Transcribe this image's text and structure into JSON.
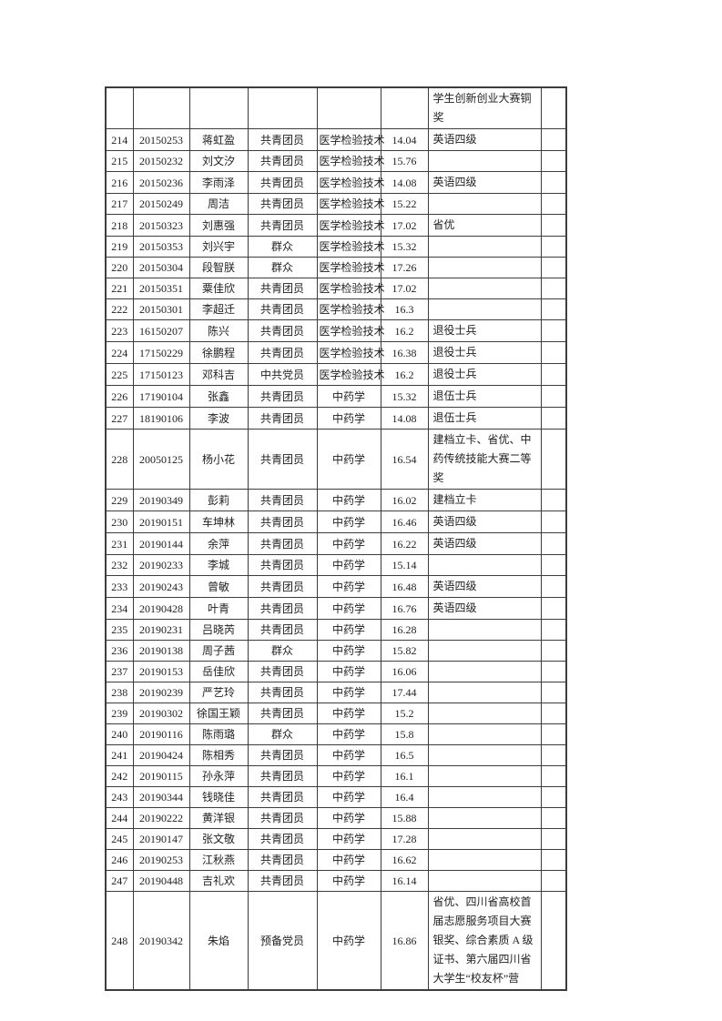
{
  "table": {
    "fields": [
      "index",
      "id",
      "name",
      "status",
      "major",
      "score",
      "awards",
      "blank"
    ],
    "rows": [
      {
        "index": "",
        "id": "",
        "name": "",
        "status": "",
        "major": "",
        "score": "",
        "awards": "学生创新创业大赛铜\n奖",
        "blank": ""
      },
      {
        "index": "214",
        "id": "20150253",
        "name": "蒋虹盈",
        "status": "共青团员",
        "major": "医学检验技术",
        "score": "14.04",
        "awards": "英语四级",
        "blank": ""
      },
      {
        "index": "215",
        "id": "20150232",
        "name": "刘文汐",
        "status": "共青团员",
        "major": "医学检验技术",
        "score": "15.76",
        "awards": "",
        "blank": ""
      },
      {
        "index": "216",
        "id": "20150236",
        "name": "李雨泽",
        "status": "共青团员",
        "major": "医学检验技术",
        "score": "14.08",
        "awards": "英语四级",
        "blank": ""
      },
      {
        "index": "217",
        "id": "20150249",
        "name": "周洁",
        "status": "共青团员",
        "major": "医学检验技术",
        "score": "15.22",
        "awards": "",
        "blank": ""
      },
      {
        "index": "218",
        "id": "20150323",
        "name": "刘惠强",
        "status": "共青团员",
        "major": "医学检验技术",
        "score": "17.02",
        "awards": "省优",
        "blank": ""
      },
      {
        "index": "219",
        "id": "20150353",
        "name": "刘兴宇",
        "status": "群众",
        "major": "医学检验技术",
        "score": "15.32",
        "awards": "",
        "blank": ""
      },
      {
        "index": "220",
        "id": "20150304",
        "name": "段智朕",
        "status": "群众",
        "major": "医学检验技术",
        "score": "17.26",
        "awards": "",
        "blank": ""
      },
      {
        "index": "221",
        "id": "20150351",
        "name": "粟佳欣",
        "status": "共青团员",
        "major": "医学检验技术",
        "score": "17.02",
        "awards": "",
        "blank": ""
      },
      {
        "index": "222",
        "id": "20150301",
        "name": "李超迁",
        "status": "共青团员",
        "major": "医学检验技术",
        "score": "16.3",
        "awards": "",
        "blank": ""
      },
      {
        "index": "223",
        "id": "16150207",
        "name": "陈兴",
        "status": "共青团员",
        "major": "医学检验技术",
        "score": "16.2",
        "awards": "退役士兵",
        "blank": ""
      },
      {
        "index": "224",
        "id": "17150229",
        "name": "徐鹏程",
        "status": "共青团员",
        "major": "医学检验技术",
        "score": "16.38",
        "awards": "退役士兵",
        "blank": ""
      },
      {
        "index": "225",
        "id": "17150123",
        "name": "邓科吉",
        "status": "中共党员",
        "major": "医学检验技术",
        "score": "16.2",
        "awards": "退役士兵",
        "blank": ""
      },
      {
        "index": "226",
        "id": "17190104",
        "name": "张鑫",
        "status": "共青团员",
        "major": "中药学",
        "score": "15.32",
        "awards": "退伍士兵",
        "blank": ""
      },
      {
        "index": "227",
        "id": "18190106",
        "name": "李波",
        "status": "共青团员",
        "major": "中药学",
        "score": "14.08",
        "awards": "退伍士兵",
        "blank": ""
      },
      {
        "index": "228",
        "id": "20050125",
        "name": "杨小花",
        "status": "共青团员",
        "major": "中药学",
        "score": "16.54",
        "awards": "建档立卡、省优、中\n药传统技能大赛二等\n奖",
        "blank": ""
      },
      {
        "index": "229",
        "id": "20190349",
        "name": "彭莉",
        "status": "共青团员",
        "major": "中药学",
        "score": "16.02",
        "awards": "建档立卡",
        "blank": ""
      },
      {
        "index": "230",
        "id": "20190151",
        "name": "车坤林",
        "status": "共青团员",
        "major": "中药学",
        "score": "16.46",
        "awards": "英语四级",
        "blank": ""
      },
      {
        "index": "231",
        "id": "20190144",
        "name": "余萍",
        "status": "共青团员",
        "major": "中药学",
        "score": "16.22",
        "awards": "英语四级",
        "blank": ""
      },
      {
        "index": "232",
        "id": "20190233",
        "name": "李城",
        "status": "共青团员",
        "major": "中药学",
        "score": "15.14",
        "awards": "",
        "blank": ""
      },
      {
        "index": "233",
        "id": "20190243",
        "name": "曾敏",
        "status": "共青团员",
        "major": "中药学",
        "score": "16.48",
        "awards": "英语四级",
        "blank": ""
      },
      {
        "index": "234",
        "id": "20190428",
        "name": "叶青",
        "status": "共青团员",
        "major": "中药学",
        "score": "16.76",
        "awards": "英语四级",
        "blank": ""
      },
      {
        "index": "235",
        "id": "20190231",
        "name": "吕晓芮",
        "status": "共青团员",
        "major": "中药学",
        "score": "16.28",
        "awards": "",
        "blank": ""
      },
      {
        "index": "236",
        "id": "20190138",
        "name": "周子茜",
        "status": "群众",
        "major": "中药学",
        "score": "15.82",
        "awards": "",
        "blank": ""
      },
      {
        "index": "237",
        "id": "20190153",
        "name": "岳佳欣",
        "status": "共青团员",
        "major": "中药学",
        "score": "16.06",
        "awards": "",
        "blank": ""
      },
      {
        "index": "238",
        "id": "20190239",
        "name": "严艺玲",
        "status": "共青团员",
        "major": "中药学",
        "score": "17.44",
        "awards": "",
        "blank": ""
      },
      {
        "index": "239",
        "id": "20190302",
        "name": "徐国王颖",
        "status": "共青团员",
        "major": "中药学",
        "score": "15.2",
        "awards": "",
        "blank": ""
      },
      {
        "index": "240",
        "id": "20190116",
        "name": "陈雨璐",
        "status": "群众",
        "major": "中药学",
        "score": "15.8",
        "awards": "",
        "blank": ""
      },
      {
        "index": "241",
        "id": "20190424",
        "name": "陈相秀",
        "status": "共青团员",
        "major": "中药学",
        "score": "16.5",
        "awards": "",
        "blank": ""
      },
      {
        "index": "242",
        "id": "20190115",
        "name": "孙永萍",
        "status": "共青团员",
        "major": "中药学",
        "score": "16.1",
        "awards": "",
        "blank": ""
      },
      {
        "index": "243",
        "id": "20190344",
        "name": "钱晓佳",
        "status": "共青团员",
        "major": "中药学",
        "score": "16.4",
        "awards": "",
        "blank": ""
      },
      {
        "index": "244",
        "id": "20190222",
        "name": "黄洋银",
        "status": "共青团员",
        "major": "中药学",
        "score": "15.88",
        "awards": "",
        "blank": ""
      },
      {
        "index": "245",
        "id": "20190147",
        "name": "张文敬",
        "status": "共青团员",
        "major": "中药学",
        "score": "17.28",
        "awards": "",
        "blank": ""
      },
      {
        "index": "246",
        "id": "20190253",
        "name": "江秋燕",
        "status": "共青团员",
        "major": "中药学",
        "score": "16.62",
        "awards": "",
        "blank": ""
      },
      {
        "index": "247",
        "id": "20190448",
        "name": "吉礼欢",
        "status": "共青团员",
        "major": "中药学",
        "score": "16.14",
        "awards": "",
        "blank": ""
      },
      {
        "index": "248",
        "id": "20190342",
        "name": "朱焰",
        "status": "预备党员",
        "major": "中药学",
        "score": "16.86",
        "awards": "省优、四川省高校首\n届志愿服务项目大赛\n银奖、综合素质 A 级\n证书、第六届四川省\n大学生“校友杯”营",
        "blank": ""
      }
    ]
  }
}
